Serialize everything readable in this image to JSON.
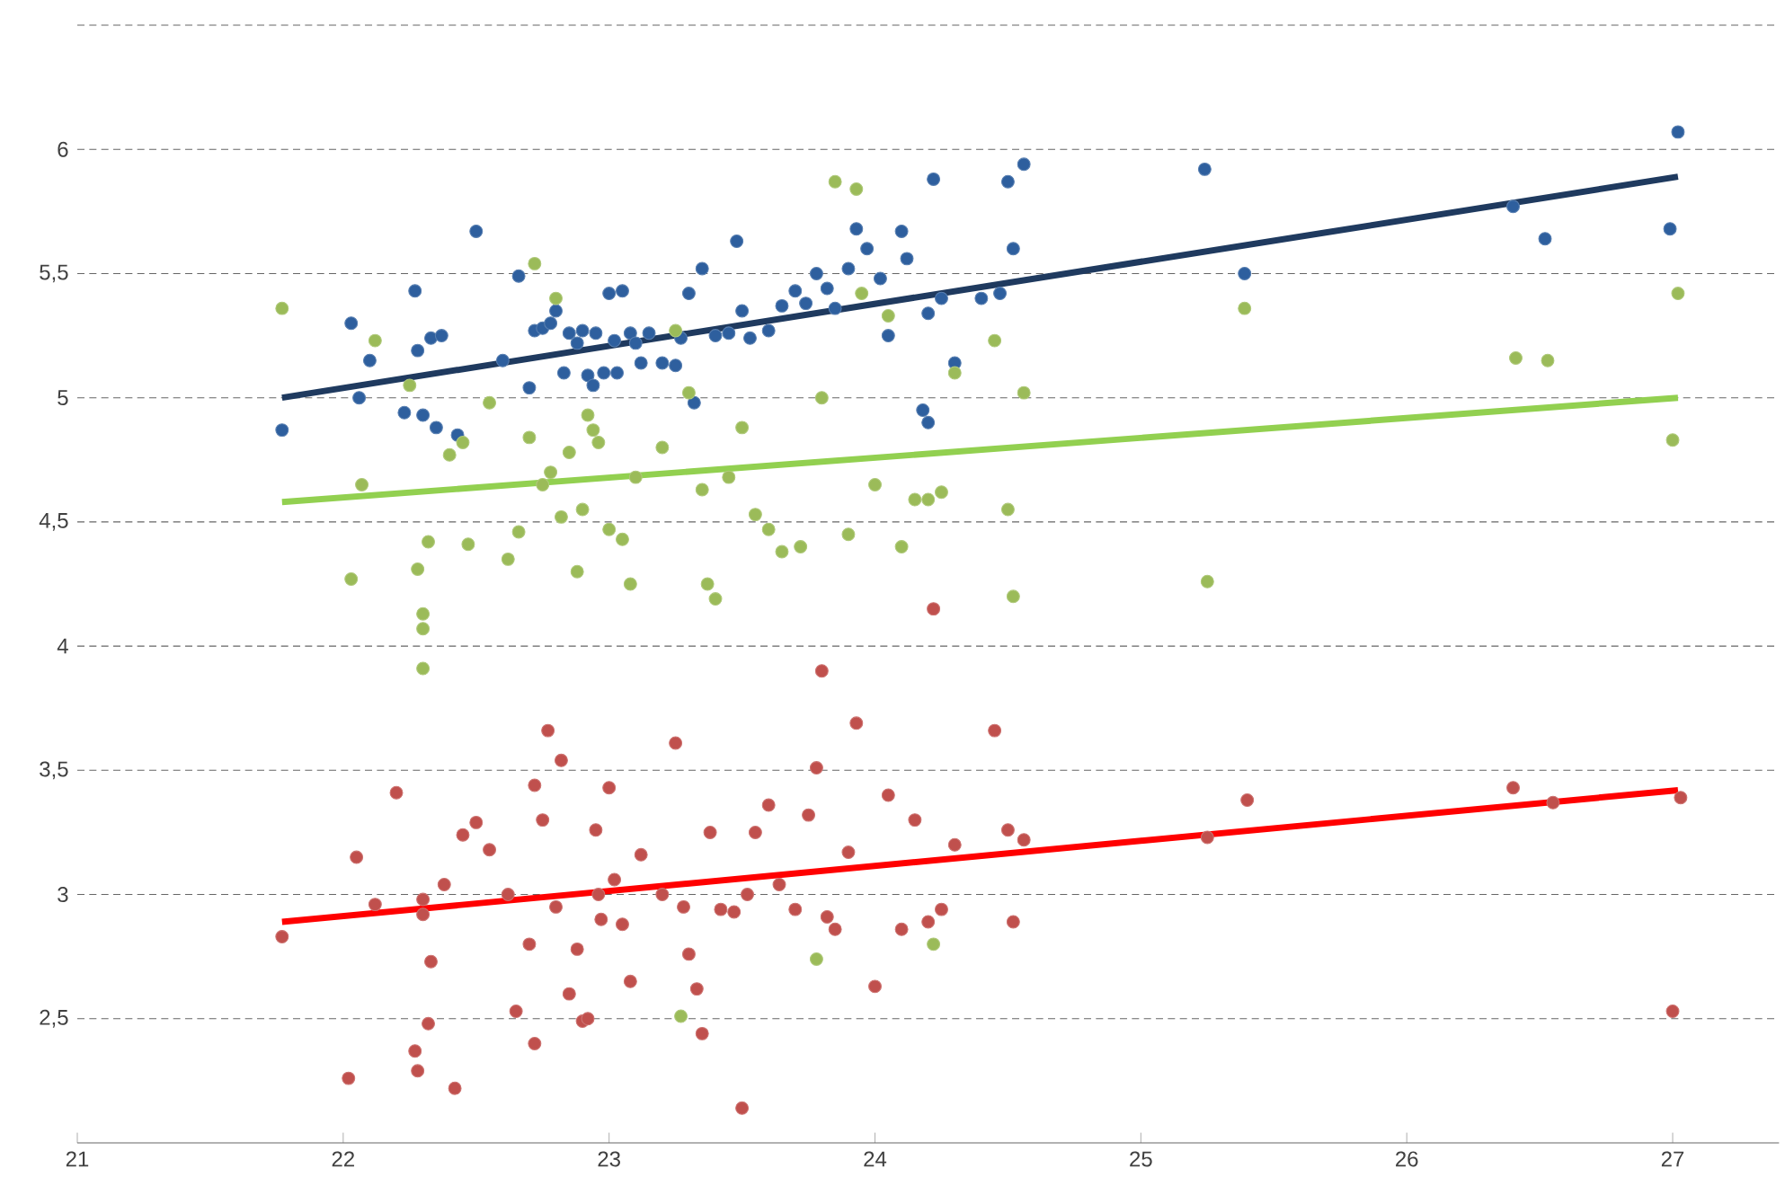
{
  "chart_data": {
    "type": "scatter",
    "xlim": [
      21,
      27.4
    ],
    "ylim": [
      2,
      6.5
    ],
    "xticks": [
      21,
      22,
      23,
      24,
      25,
      26,
      27
    ],
    "yticks": [
      {
        "value": 2.5,
        "label": "2,5"
      },
      3,
      {
        "value": 3.5,
        "label": "3,5"
      },
      4,
      {
        "value": 4.5,
        "label": "4,5"
      },
      5,
      {
        "value": 5.5,
        "label": "5,5"
      },
      6,
      {
        "value": 6.5,
        "label": null
      }
    ],
    "grid": "y",
    "marker": "circle",
    "series": [
      {
        "color": "#2e5f9e",
        "x": [
          21.77,
          22.03,
          22.06,
          22.1,
          22.23,
          22.27,
          22.28,
          22.3,
          22.33,
          22.35,
          22.37,
          22.43,
          22.5,
          22.6,
          22.66,
          22.7,
          22.72,
          22.75,
          22.78,
          22.8,
          22.83,
          22.85,
          22.88,
          22.9,
          22.92,
          22.94,
          22.95,
          22.98,
          23.0,
          23.02,
          23.03,
          23.05,
          23.08,
          23.1,
          23.12,
          23.15,
          23.2,
          23.25,
          23.27,
          23.3,
          23.32,
          23.35,
          23.4,
          23.45,
          23.48,
          23.5,
          23.53,
          23.6,
          23.65,
          23.7,
          23.74,
          23.78,
          23.82,
          23.85,
          23.9,
          23.93,
          23.97,
          24.02,
          24.05,
          24.1,
          24.12,
          24.18,
          24.2,
          24.2,
          24.22,
          24.25,
          24.3,
          24.4,
          24.47,
          24.5,
          24.52,
          24.56,
          25.24,
          25.39,
          26.4,
          26.52,
          26.99,
          27.02
        ],
        "values": [
          4.87,
          5.3,
          5.0,
          5.15,
          4.94,
          5.43,
          5.19,
          4.93,
          5.24,
          4.88,
          5.25,
          4.85,
          5.67,
          5.15,
          5.49,
          5.04,
          5.27,
          5.28,
          5.3,
          5.35,
          5.1,
          5.26,
          5.22,
          5.27,
          5.09,
          5.05,
          5.26,
          5.1,
          5.42,
          5.23,
          5.1,
          5.43,
          5.26,
          5.22,
          5.14,
          5.26,
          5.14,
          5.13,
          5.24,
          5.42,
          4.98,
          5.52,
          5.25,
          5.26,
          5.63,
          5.35,
          5.24,
          5.27,
          5.37,
          5.43,
          5.38,
          5.5,
          5.44,
          5.36,
          5.52,
          5.68,
          5.6,
          5.48,
          5.25,
          5.67,
          5.56,
          4.95,
          5.34,
          4.9,
          5.88,
          5.4,
          5.14,
          5.4,
          5.42,
          5.87,
          5.6,
          5.94,
          5.92,
          5.5,
          5.77,
          5.64,
          5.68,
          6.07
        ]
      },
      {
        "color": "#9bbb59",
        "x": [
          21.77,
          22.03,
          22.07,
          22.12,
          22.25,
          22.28,
          22.3,
          22.3,
          22.3,
          22.32,
          22.4,
          22.45,
          22.47,
          22.55,
          22.62,
          22.66,
          22.7,
          22.72,
          22.75,
          22.78,
          22.8,
          22.82,
          22.85,
          22.88,
          22.9,
          22.92,
          22.94,
          22.96,
          23.0,
          23.05,
          23.08,
          23.1,
          23.2,
          23.25,
          23.3,
          23.35,
          23.37,
          23.4,
          23.45,
          23.5,
          23.55,
          23.6,
          23.65,
          23.72,
          23.8,
          23.85,
          23.9,
          23.93,
          23.95,
          24.0,
          24.05,
          24.1,
          24.15,
          24.2,
          24.25,
          24.3,
          24.45,
          24.5,
          24.52,
          24.56,
          25.25,
          25.39,
          26.41,
          26.53,
          27.0,
          27.02,
          24.22,
          23.78,
          23.27
        ],
        "values": [
          5.36,
          4.27,
          4.65,
          5.23,
          5.05,
          4.31,
          4.07,
          4.13,
          3.91,
          4.42,
          4.77,
          4.82,
          4.41,
          4.98,
          4.35,
          4.46,
          4.84,
          5.54,
          4.65,
          4.7,
          5.4,
          4.52,
          4.78,
          4.3,
          4.55,
          4.93,
          4.87,
          4.82,
          4.47,
          4.43,
          4.25,
          4.68,
          4.8,
          5.27,
          5.02,
          4.63,
          4.25,
          4.19,
          4.68,
          4.88,
          4.53,
          4.47,
          4.38,
          4.4,
          5.0,
          5.87,
          4.45,
          5.84,
          5.42,
          4.65,
          5.33,
          4.4,
          4.59,
          4.59,
          4.62,
          5.1,
          5.23,
          4.55,
          4.2,
          5.02,
          4.26,
          5.36,
          5.16,
          5.15,
          4.83,
          5.42,
          2.8,
          2.74,
          2.51
        ]
      },
      {
        "color": "#c0504d",
        "x": [
          21.77,
          22.02,
          22.05,
          22.12,
          22.2,
          22.27,
          22.28,
          22.3,
          22.3,
          22.32,
          22.33,
          22.38,
          22.42,
          22.45,
          22.5,
          22.55,
          22.62,
          22.65,
          22.7,
          22.72,
          22.72,
          22.75,
          22.77,
          22.8,
          22.82,
          22.85,
          22.88,
          22.9,
          22.92,
          22.95,
          22.96,
          22.97,
          23.0,
          23.02,
          23.05,
          23.08,
          23.12,
          23.2,
          23.25,
          23.28,
          23.3,
          23.33,
          23.35,
          23.38,
          23.42,
          23.47,
          23.5,
          23.52,
          23.55,
          23.6,
          23.64,
          23.7,
          23.75,
          23.78,
          23.8,
          23.82,
          23.85,
          23.9,
          23.93,
          24.0,
          24.05,
          24.1,
          24.15,
          24.2,
          24.22,
          24.25,
          24.3,
          24.45,
          24.5,
          24.52,
          24.56,
          25.25,
          25.4,
          26.4,
          26.55,
          27.0,
          27.03
        ],
        "values": [
          2.83,
          2.26,
          3.15,
          2.96,
          3.41,
          2.37,
          2.29,
          2.98,
          2.92,
          2.48,
          2.73,
          3.04,
          2.22,
          3.24,
          3.29,
          3.18,
          3.0,
          2.53,
          2.8,
          3.44,
          2.4,
          3.3,
          3.66,
          2.95,
          3.54,
          2.6,
          2.78,
          2.49,
          2.5,
          3.26,
          3.0,
          2.9,
          3.43,
          3.06,
          2.88,
          2.65,
          3.16,
          3.0,
          3.61,
          2.95,
          2.76,
          2.62,
          2.44,
          3.25,
          2.94,
          2.93,
          2.14,
          3.0,
          3.25,
          3.36,
          3.04,
          2.94,
          3.32,
          3.51,
          3.9,
          2.91,
          2.86,
          3.17,
          3.69,
          2.63,
          3.4,
          2.86,
          3.3,
          2.89,
          4.15,
          2.94,
          3.2,
          3.66,
          3.26,
          2.89,
          3.22,
          3.23,
          3.38,
          3.43,
          3.37,
          2.53,
          3.39
        ]
      },
      {
        "type": "line",
        "marker": "none",
        "color": "#1f3a5f",
        "x": [
          21.77,
          27.02
        ],
        "values": [
          5.0,
          5.89
        ]
      },
      {
        "type": "line",
        "marker": "none",
        "color": "#92d050",
        "x": [
          21.77,
          27.02
        ],
        "values": [
          4.58,
          5.0
        ]
      },
      {
        "type": "line",
        "marker": "none",
        "color": "#ff0000",
        "x": [
          21.77,
          27.02
        ],
        "values": [
          2.89,
          3.42
        ]
      }
    ]
  }
}
